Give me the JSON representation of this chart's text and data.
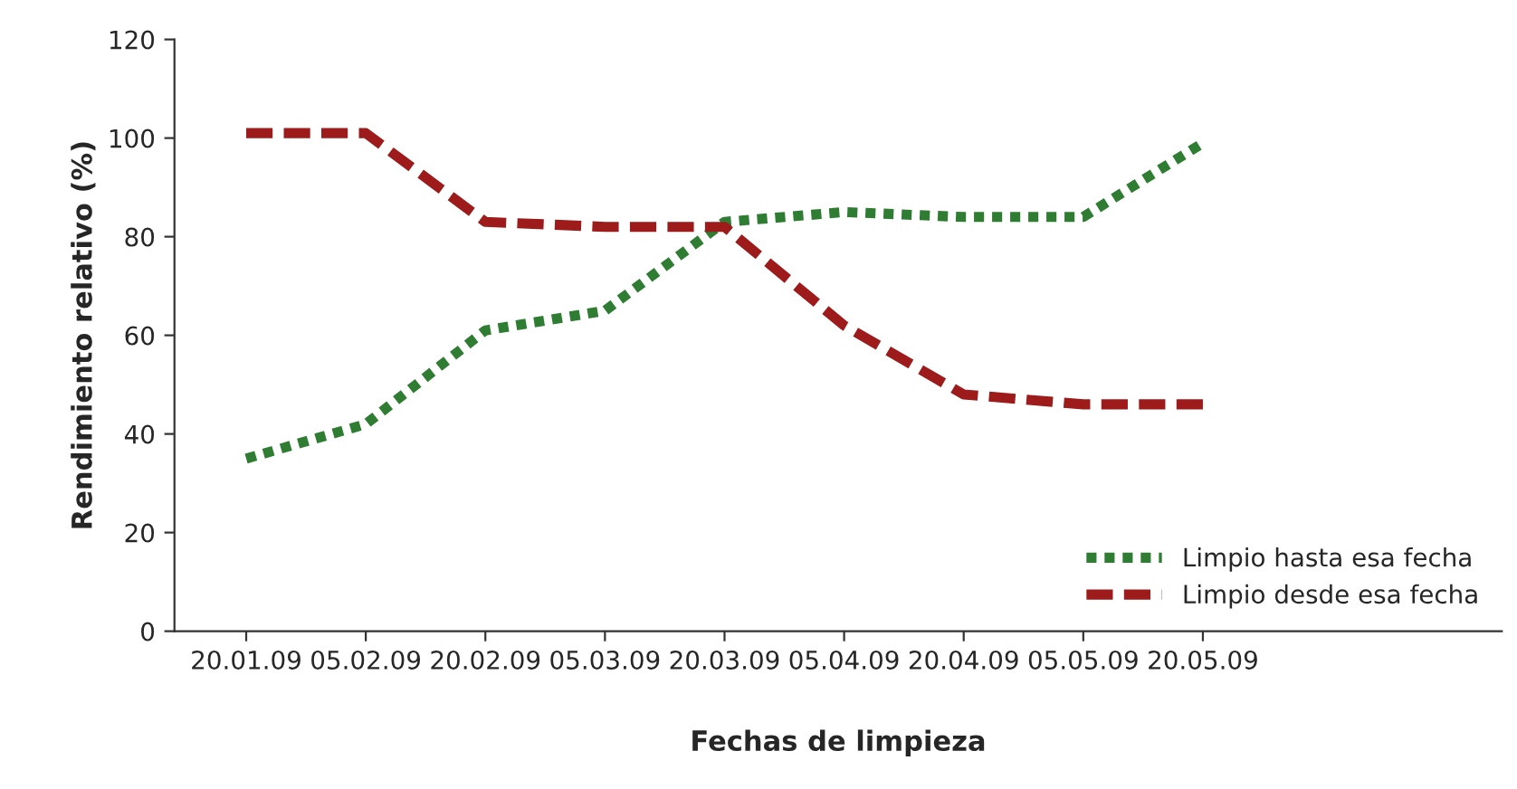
{
  "chart_data": {
    "type": "line",
    "xlabel": "Fechas de limpieza",
    "ylabel": "Rendimiento relativo (%)",
    "categories": [
      "20.01.09",
      "05.02.09",
      "20.02.09",
      "05.03.09",
      "20.03.09",
      "05.04.09",
      "20.04.09",
      "05.05.09",
      "20.05.09"
    ],
    "series": [
      {
        "name": "Limpio hasta esa fecha",
        "color": "#2e7d32",
        "line_style": "dotted",
        "values": [
          35,
          42,
          61,
          65,
          83,
          85,
          84,
          84,
          99
        ]
      },
      {
        "name": "Limpio desde esa fecha",
        "color": "#9e1b1b",
        "line_style": "dashed",
        "values": [
          101,
          101,
          83,
          82,
          82,
          62,
          48,
          46,
          46
        ]
      }
    ],
    "ylim": [
      0,
      120
    ],
    "yticks": [
      0,
      20,
      40,
      60,
      80,
      100,
      120
    ],
    "grid": false,
    "legend": "bottom right",
    "marker": "none"
  }
}
